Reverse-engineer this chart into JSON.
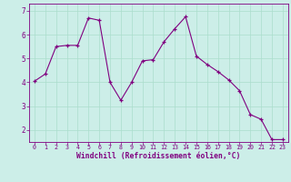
{
  "x": [
    0,
    1,
    2,
    3,
    4,
    5,
    6,
    7,
    8,
    9,
    10,
    11,
    12,
    13,
    14,
    15,
    16,
    17,
    18,
    19,
    20,
    21,
    22,
    23
  ],
  "y": [
    4.05,
    4.35,
    5.5,
    5.55,
    5.55,
    6.7,
    6.6,
    4.0,
    3.25,
    4.0,
    4.9,
    4.95,
    5.7,
    6.25,
    6.75,
    5.1,
    4.75,
    4.45,
    4.1,
    3.65,
    2.65,
    2.45,
    1.6,
    1.6
  ],
  "line_color": "#800080",
  "marker": "+",
  "bg_color": "#cceee8",
  "grid_color": "#aaddcc",
  "xlabel": "Windchill (Refroidissement éolien,°C)",
  "xlim": [
    -0.5,
    23.5
  ],
  "ylim": [
    1.5,
    7.3
  ],
  "yticks": [
    2,
    3,
    4,
    5,
    6,
    7
  ],
  "xticks": [
    0,
    1,
    2,
    3,
    4,
    5,
    6,
    7,
    8,
    9,
    10,
    11,
    12,
    13,
    14,
    15,
    16,
    17,
    18,
    19,
    20,
    21,
    22,
    23
  ],
  "label_color": "#800080",
  "tick_color": "#800080",
  "axis_color": "#800080",
  "xlabel_fontsize": 5.8,
  "xtick_fontsize": 4.8,
  "ytick_fontsize": 5.5
}
